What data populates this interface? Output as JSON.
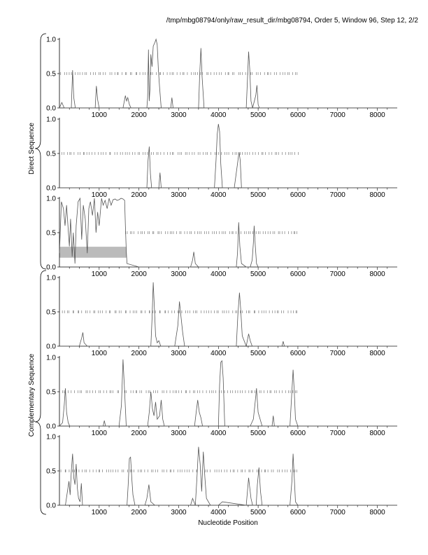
{
  "header": {
    "title": "/tmp/mbg08794/only/raw_result_dir/mbg08794, Order 5, Window 96, Step 12, 2/2"
  },
  "labels": {
    "xlabel": "Nucleotide Position",
    "group_direct": "Direct Sequence",
    "group_complementary": "Complementary Sequence"
  },
  "style": {
    "line_color": "#555555",
    "tick_color": "#666666",
    "box_color": "#bbbbbb"
  },
  "chart_data": [
    {
      "type": "line",
      "group": "Direct Sequence",
      "frame": 1,
      "xlim": [
        0,
        8500
      ],
      "ylim": [
        0,
        1.0
      ],
      "xticks": [
        1000,
        2000,
        3000,
        4000,
        5000,
        6000,
        7000,
        8000
      ],
      "yticks": [
        0.0,
        0.5,
        1.0
      ],
      "tick_marks": {
        "y": 0.5,
        "from": 50,
        "to": 6000,
        "count": 90
      },
      "x": [
        0,
        60,
        120,
        300,
        330,
        360,
        400,
        700,
        900,
        930,
        960,
        1000,
        1100,
        1250,
        1500,
        1600,
        1660,
        1690,
        1720,
        1760,
        1800,
        1900,
        2100,
        2200,
        2220,
        2240,
        2260,
        2280,
        2300,
        2330,
        2360,
        2400,
        2430,
        2460,
        2490,
        2520,
        2560,
        2700,
        2800,
        2830,
        2860,
        3000,
        3300,
        3500,
        3530,
        3560,
        3590,
        3640,
        3800,
        4000,
        4400,
        4700,
        4730,
        4760,
        4790,
        4820,
        4860,
        4940,
        4970,
        5000,
        5030,
        5200,
        5600,
        6000,
        7000,
        8500
      ],
      "y": [
        0.0,
        0.08,
        0.0,
        0.0,
        0.55,
        0.15,
        0.0,
        0.0,
        0.0,
        0.32,
        0.12,
        0.0,
        0.0,
        0.0,
        0.0,
        0.0,
        0.18,
        0.1,
        0.15,
        0.05,
        0.0,
        0.0,
        0.0,
        0.0,
        0.15,
        0.85,
        0.1,
        0.3,
        0.78,
        0.6,
        0.9,
        0.95,
        1.0,
        0.92,
        0.55,
        0.3,
        0.0,
        0.0,
        0.0,
        0.15,
        0.0,
        0.0,
        0.0,
        0.0,
        0.5,
        0.87,
        0.45,
        0.0,
        0.0,
        0.0,
        0.0,
        0.0,
        0.4,
        0.82,
        0.55,
        0.1,
        0.0,
        0.18,
        0.33,
        0.05,
        0.0,
        0.0,
        0.0,
        0.0,
        0.0,
        0.0
      ]
    },
    {
      "type": "line",
      "group": "Direct Sequence",
      "frame": 2,
      "xlim": [
        0,
        8500
      ],
      "ylim": [
        0,
        1.0
      ],
      "xticks": [
        1000,
        2000,
        3000,
        4000,
        5000,
        6000,
        7000,
        8000
      ],
      "yticks": [
        0.0,
        0.5,
        1.0
      ],
      "tick_marks": {
        "y": 0.5,
        "from": 50,
        "to": 6000,
        "count": 90
      },
      "x": [
        0,
        500,
        1000,
        1500,
        2000,
        2200,
        2230,
        2260,
        2290,
        2320,
        2400,
        2500,
        2530,
        2560,
        2700,
        3000,
        3500,
        3900,
        3940,
        3970,
        4000,
        4030,
        4060,
        4100,
        4200,
        4400,
        4480,
        4520,
        4550,
        4580,
        4700,
        5000,
        6000,
        7000,
        8500
      ],
      "y": [
        0.0,
        0.0,
        0.0,
        0.0,
        0.0,
        0.0,
        0.4,
        0.6,
        0.2,
        0.0,
        0.0,
        0.0,
        0.22,
        0.0,
        0.0,
        0.0,
        0.0,
        0.0,
        0.4,
        0.78,
        0.93,
        0.82,
        0.35,
        0.0,
        0.0,
        0.0,
        0.35,
        0.52,
        0.4,
        0.0,
        0.0,
        0.0,
        0.0,
        0.0,
        0.0
      ]
    },
    {
      "type": "line",
      "group": "Direct Sequence",
      "frame": 3,
      "xlim": [
        0,
        8500
      ],
      "ylim": [
        0,
        1.0
      ],
      "xticks": [
        1000,
        2000,
        3000,
        4000,
        5000,
        6000,
        7000,
        8000
      ],
      "yticks": [
        0.0,
        0.5,
        1.0
      ],
      "tick_marks": {
        "y": 0.5,
        "from": 1650,
        "to": 6000,
        "count": 70
      },
      "highlight_box": {
        "x_from": 0,
        "x_to": 1680,
        "y_from": 0.14,
        "y_to": 0.29
      },
      "x": [
        0,
        50,
        100,
        140,
        180,
        220,
        250,
        280,
        320,
        350,
        390,
        420,
        470,
        520,
        560,
        600,
        650,
        700,
        740,
        780,
        830,
        880,
        920,
        960,
        1000,
        1060,
        1100,
        1150,
        1200,
        1250,
        1300,
        1350,
        1400,
        1450,
        1500,
        1550,
        1600,
        1640,
        1660,
        1680,
        1700,
        2000,
        2500,
        2800,
        3300,
        3350,
        3380,
        3420,
        3500,
        4000,
        4450,
        4480,
        4510,
        4540,
        4580,
        4700,
        4800,
        4850,
        4880,
        4900,
        4930,
        4960,
        5000,
        5500,
        6000,
        7000,
        8500
      ],
      "y": [
        0.2,
        0.95,
        0.85,
        0.6,
        0.9,
        0.55,
        0.3,
        0.7,
        0.15,
        0.5,
        0.05,
        0.6,
        0.95,
        1.0,
        0.4,
        0.9,
        0.7,
        0.2,
        0.85,
        0.95,
        0.75,
        1.0,
        0.5,
        0.8,
        0.6,
        1.0,
        0.9,
        0.97,
        0.85,
        1.0,
        0.9,
        0.98,
        0.99,
        0.97,
        0.98,
        1.0,
        0.99,
        0.97,
        0.6,
        0.25,
        0.05,
        0.0,
        0.0,
        0.0,
        0.0,
        0.1,
        0.22,
        0.05,
        0.0,
        0.0,
        0.0,
        0.2,
        0.65,
        0.3,
        0.05,
        0.0,
        0.0,
        0.1,
        0.35,
        0.6,
        0.3,
        0.05,
        0.0,
        0.0,
        0.0,
        0.0,
        0.0
      ]
    },
    {
      "type": "line",
      "group": "Complementary Sequence",
      "frame": 1,
      "xlim": [
        0,
        8500
      ],
      "ylim": [
        0,
        1.0
      ],
      "xticks": [
        1000,
        2000,
        3000,
        4000,
        5000,
        6000,
        7000,
        8000
      ],
      "yticks": [
        0.0,
        0.5,
        1.0
      ],
      "tick_marks": {
        "y": 0.5,
        "from": 50,
        "to": 6000,
        "count": 90
      },
      "x": [
        0,
        500,
        560,
        590,
        620,
        700,
        1000,
        1500,
        2000,
        2300,
        2330,
        2360,
        2390,
        2420,
        2460,
        2500,
        2550,
        2900,
        2980,
        3020,
        3060,
        3100,
        3150,
        3500,
        4000,
        4450,
        4490,
        4530,
        4560,
        4600,
        4700,
        4760,
        4800,
        4850,
        5000,
        5600,
        5630,
        5660,
        6000,
        7000,
        8500
      ],
      "y": [
        0.0,
        0.0,
        0.12,
        0.2,
        0.05,
        0.0,
        0.0,
        0.0,
        0.0,
        0.0,
        0.4,
        0.93,
        0.55,
        0.15,
        0.05,
        0.08,
        0.0,
        0.0,
        0.3,
        0.65,
        0.42,
        0.2,
        0.0,
        0.0,
        0.0,
        0.0,
        0.45,
        0.78,
        0.55,
        0.15,
        0.0,
        0.18,
        0.08,
        0.0,
        0.0,
        0.0,
        0.07,
        0.0,
        0.0,
        0.0,
        0.0
      ]
    },
    {
      "type": "line",
      "group": "Complementary Sequence",
      "frame": 2,
      "xlim": [
        0,
        8500
      ],
      "ylim": [
        0,
        1.0
      ],
      "xticks": [
        1000,
        2000,
        3000,
        4000,
        5000,
        6000,
        7000,
        8000
      ],
      "yticks": [
        0.0,
        0.5,
        1.0
      ],
      "tick_marks": {
        "y": 0.5,
        "from": 50,
        "to": 6000,
        "count": 90
      },
      "x": [
        0,
        80,
        120,
        150,
        180,
        220,
        260,
        1000,
        1100,
        1130,
        1160,
        1500,
        1560,
        1600,
        1640,
        1680,
        2000,
        2220,
        2260,
        2300,
        2340,
        2380,
        2420,
        2460,
        2520,
        2560,
        2600,
        2640,
        3000,
        3400,
        3440,
        3480,
        3520,
        3560,
        3600,
        4000,
        4030,
        4060,
        4090,
        4120,
        4160,
        4800,
        4880,
        4920,
        4960,
        5000,
        5100,
        5350,
        5380,
        5410,
        5800,
        5840,
        5880,
        5910,
        5940,
        6000,
        7000,
        8500
      ],
      "y": [
        0.0,
        0.05,
        0.3,
        0.55,
        0.2,
        0.05,
        0.0,
        0.0,
        0.0,
        0.08,
        0.0,
        0.0,
        0.3,
        0.97,
        0.5,
        0.0,
        0.0,
        0.0,
        0.2,
        0.5,
        0.25,
        0.15,
        0.35,
        0.1,
        0.15,
        0.38,
        0.1,
        0.0,
        0.0,
        0.0,
        0.2,
        0.38,
        0.2,
        0.12,
        0.0,
        0.0,
        0.6,
        0.93,
        0.95,
        0.7,
        0.0,
        0.0,
        0.1,
        0.32,
        0.55,
        0.2,
        0.0,
        0.0,
        0.15,
        0.0,
        0.0,
        0.4,
        0.82,
        0.5,
        0.1,
        0.0,
        0.0,
        0.0
      ]
    },
    {
      "type": "line",
      "group": "Complementary Sequence",
      "frame": 3,
      "xlim": [
        0,
        8500
      ],
      "ylim": [
        0,
        1.0
      ],
      "xticks": [
        1000,
        2000,
        3000,
        4000,
        5000,
        6000,
        7000,
        8000
      ],
      "yticks": [
        0.0,
        0.5,
        1.0
      ],
      "tick_marks": {
        "y": 0.5,
        "from": 50,
        "to": 6000,
        "count": 90
      },
      "x": [
        0,
        150,
        200,
        240,
        270,
        300,
        330,
        360,
        390,
        420,
        450,
        480,
        520,
        550,
        580,
        700,
        1000,
        1500,
        1700,
        1730,
        1760,
        1790,
        1820,
        1850,
        1900,
        2000,
        2150,
        2200,
        2250,
        2300,
        2400,
        2800,
        3000,
        3300,
        3350,
        3420,
        3460,
        3500,
        3540,
        3580,
        3620,
        3660,
        3700,
        3800,
        4000,
        4100,
        4700,
        4730,
        4760,
        4790,
        4820,
        4860,
        4950,
        4980,
        5020,
        5060,
        5100,
        5800,
        5850,
        5880,
        5910,
        5940,
        6000,
        7000,
        8500
      ],
      "y": [
        0.0,
        0.0,
        0.2,
        0.35,
        0.15,
        0.5,
        0.75,
        0.4,
        0.3,
        0.6,
        0.25,
        0.1,
        0.05,
        0.32,
        0.0,
        0.0,
        0.0,
        0.0,
        0.0,
        0.3,
        0.68,
        0.7,
        0.4,
        0.15,
        0.0,
        0.0,
        0.0,
        0.1,
        0.3,
        0.05,
        0.0,
        0.0,
        0.0,
        0.0,
        0.1,
        0.0,
        0.4,
        0.85,
        0.6,
        0.2,
        0.78,
        0.4,
        0.1,
        0.0,
        0.0,
        0.05,
        0.0,
        0.2,
        0.4,
        0.25,
        0.1,
        0.0,
        0.0,
        0.3,
        0.55,
        0.2,
        0.0,
        0.0,
        0.35,
        0.75,
        0.4,
        0.05,
        0.0,
        0.0,
        0.0
      ]
    }
  ]
}
